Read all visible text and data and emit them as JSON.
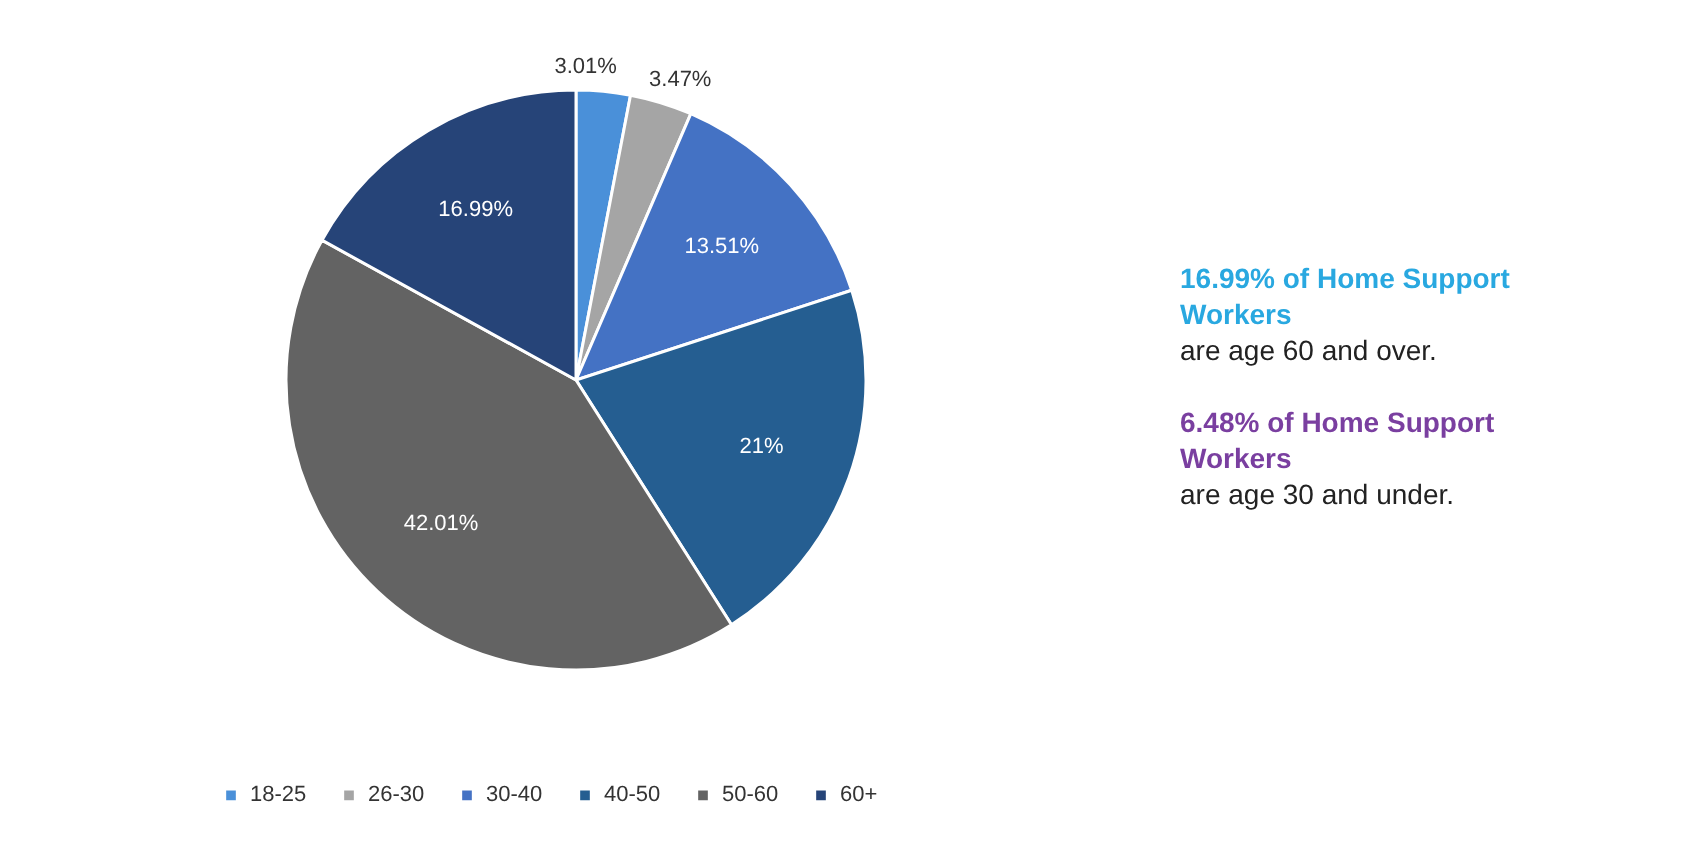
{
  "chart_data": {
    "type": "pie",
    "categories": [
      "18-25",
      "26-30",
      "30-40",
      "40-50",
      "50-60",
      "60+"
    ],
    "values": [
      3.01,
      3.47,
      13.51,
      21,
      42.01,
      16.99
    ],
    "colors": [
      "#4a90d9",
      "#a5a5a5",
      "#4472c4",
      "#255e91",
      "#636363",
      "#264478"
    ],
    "value_labels": [
      "3.01%",
      "3.47%",
      "13.51%",
      "21%",
      "42.01%",
      "16.99%"
    ],
    "legend": "bottom",
    "annotations": [
      "16.99% of Home Support Workers",
      "are age 60 and over.",
      "6.48% of Home Support Workers",
      "are age 30 and under."
    ]
  }
}
